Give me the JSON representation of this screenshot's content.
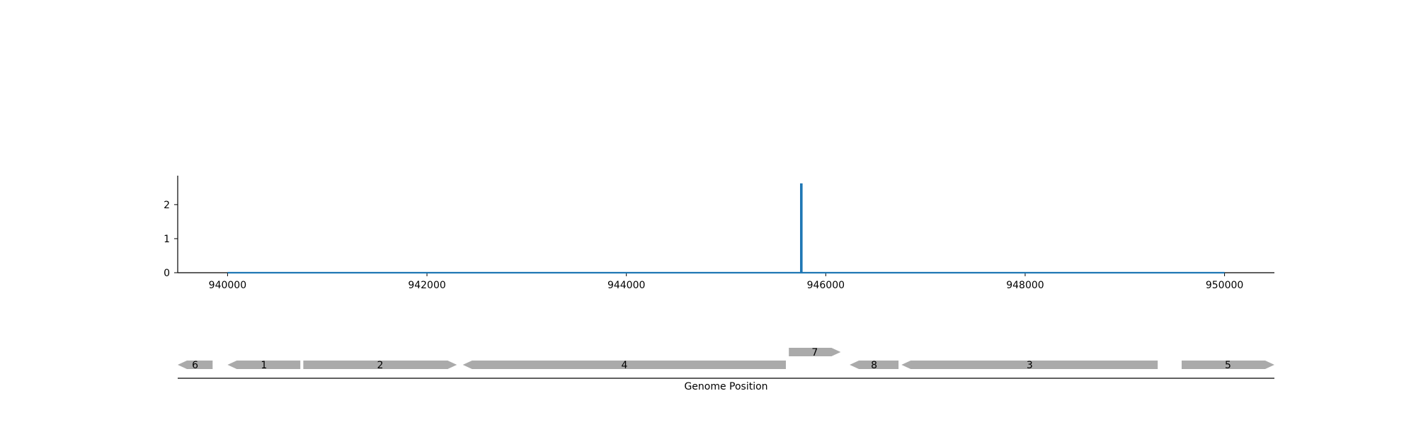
{
  "chart_data": [
    {
      "type": "line",
      "title": "",
      "xlabel": "",
      "ylabel": "",
      "xlim": [
        939500,
        950500
      ],
      "ylim": [
        0,
        2.85
      ],
      "x_ticks": [
        940000,
        942000,
        944000,
        946000,
        948000,
        950000
      ],
      "x_tick_labels": [
        "940000",
        "942000",
        "944000",
        "946000",
        "948000",
        "950000"
      ],
      "y_ticks": [
        0,
        1,
        2
      ],
      "y_tick_labels": [
        "0",
        "1",
        "2"
      ],
      "grid": false,
      "legend": "none",
      "series": [
        {
          "color": "#1f77b4",
          "x": [
            940000,
            945750,
            945750,
            945760,
            945760,
            950000
          ],
          "y": [
            0,
            0,
            2.6,
            2.6,
            0,
            0
          ]
        }
      ]
    },
    {
      "type": "gene_track",
      "xlabel": "Genome Position",
      "xlim": [
        939500,
        950500
      ],
      "gene_color": "#aaaaaa",
      "genes": [
        {
          "label": "6",
          "start": 939500,
          "end": 939850,
          "strand": "-",
          "row": 0
        },
        {
          "label": "1",
          "start": 940000,
          "end": 940730,
          "strand": "-",
          "row": 0
        },
        {
          "label": "2",
          "start": 940760,
          "end": 942300,
          "strand": "+",
          "row": 0
        },
        {
          "label": "4",
          "start": 942360,
          "end": 945600,
          "strand": "-",
          "row": 0
        },
        {
          "label": "7",
          "start": 945630,
          "end": 946150,
          "strand": "+",
          "row": 1
        },
        {
          "label": "8",
          "start": 946240,
          "end": 946730,
          "strand": "-",
          "row": 0
        },
        {
          "label": "3",
          "start": 946760,
          "end": 949330,
          "strand": "-",
          "row": 0
        },
        {
          "label": "5",
          "start": 949570,
          "end": 950500,
          "strand": "+",
          "row": 0
        }
      ]
    }
  ]
}
